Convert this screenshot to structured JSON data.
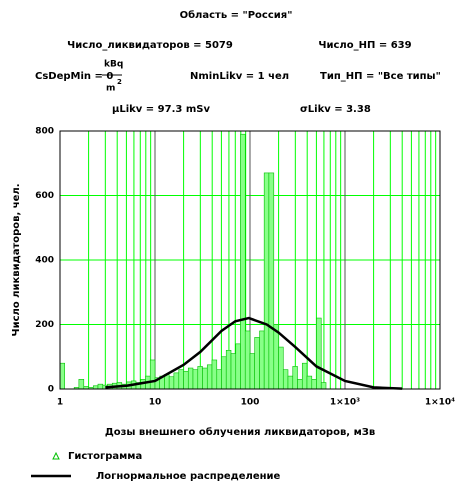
{
  "chart_data": {
    "type": "histogram",
    "title": "Область = \"Россия\"",
    "annotations": [
      "Число_ликвидаторов = 5079",
      "Число_НП = 639",
      "CsDepMin = 0",
      "kBq",
      "m",
      "2",
      "NminLikv = 1 чел",
      "Тип_НП = \"Все типы\"",
      "μLikv = 97.3 mSv",
      "σLikv = 3.38"
    ],
    "x_label": "Дозы внешнего облучения ликвидаторов, мЗв",
    "y_label": "Число ликвидаторов, чел.",
    "xscale": "log",
    "xlim": [
      1,
      10000
    ],
    "xticks": [
      1,
      10,
      100,
      {
        "value": 1000,
        "label": "1×10³"
      },
      {
        "value": 10000,
        "label": "1×10⁴"
      }
    ],
    "ylim": [
      0,
      800
    ],
    "yticks": [
      0,
      200,
      400,
      600,
      800
    ],
    "grid": true,
    "grid_color": "#00ff00",
    "legend": "bottom-left",
    "series": [
      {
        "type": "histogram",
        "name": "Гистограмма",
        "color": "#88ff88",
        "edgecolor": "#00c000",
        "bins": [
          1,
          1.12,
          1.26,
          1.41,
          1.58,
          1.78,
          2,
          2.24,
          2.51,
          2.82,
          3.16,
          3.55,
          3.98,
          4.47,
          5.01,
          5.62,
          6.31,
          7.08,
          7.94,
          8.91,
          10,
          11.2,
          12.6,
          14.1,
          15.8,
          17.8,
          20,
          22.4,
          25.1,
          28.2,
          31.6,
          35.5,
          39.8,
          44.7,
          50.1,
          56.2,
          63.1,
          70.8,
          79.4,
          89.1,
          100,
          112,
          126,
          141,
          158,
          178,
          200,
          224,
          251,
          282,
          316,
          355,
          398,
          447,
          501,
          562,
          631
        ],
        "values": [
          80,
          0,
          0,
          5,
          30,
          8,
          5,
          10,
          15,
          12,
          15,
          18,
          20,
          15,
          22,
          25,
          20,
          30,
          40,
          90,
          35,
          40,
          45,
          38,
          50,
          60,
          55,
          65,
          60,
          70,
          65,
          75,
          90,
          60,
          100,
          120,
          110,
          140,
          790,
          180,
          110,
          160,
          180,
          670,
          670,
          200,
          130,
          60,
          40,
          70,
          30,
          80,
          40,
          30,
          220,
          20
        ]
      },
      {
        "type": "line",
        "name": "Логнормальное распределение",
        "color": "#000000",
        "x": [
          3,
          5,
          10,
          20,
          30,
          50,
          70,
          97.3,
          150,
          200,
          300,
          500,
          1000,
          2000,
          4000
        ],
        "values": [
          5,
          10,
          25,
          75,
          115,
          180,
          210,
          220,
          200,
          175,
          130,
          70,
          25,
          5,
          1
        ]
      }
    ]
  }
}
